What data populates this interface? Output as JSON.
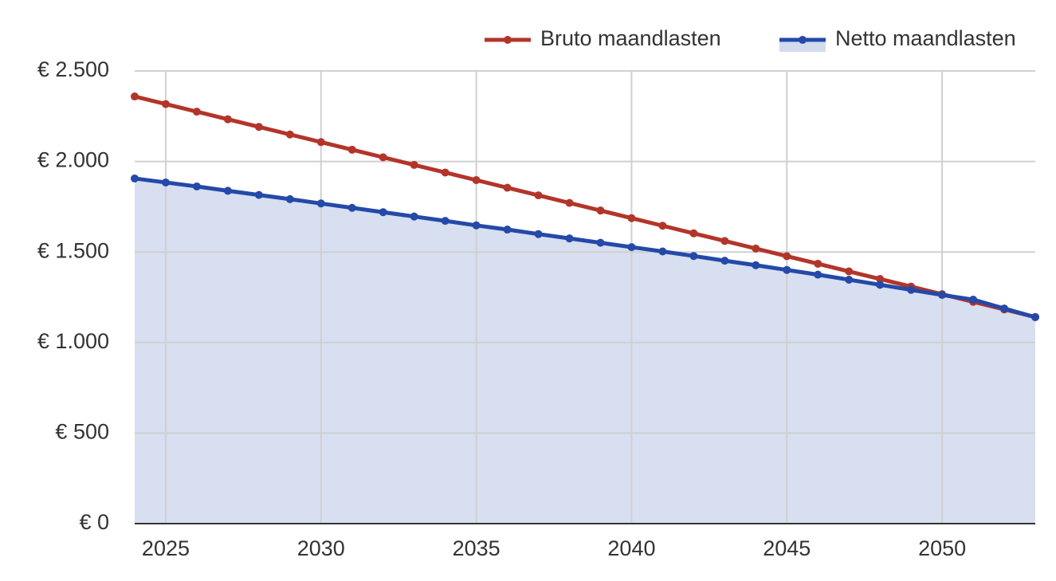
{
  "chart_data": {
    "type": "line",
    "x": [
      2024,
      2025,
      2026,
      2027,
      2028,
      2029,
      2030,
      2031,
      2032,
      2033,
      2034,
      2035,
      2036,
      2037,
      2038,
      2039,
      2040,
      2041,
      2042,
      2043,
      2044,
      2045,
      2046,
      2047,
      2048,
      2049,
      2050,
      2051,
      2052,
      2053
    ],
    "series": [
      {
        "name": "Bruto maandlasten",
        "color": "#b3352a",
        "area": false,
        "values": [
          2359,
          2317,
          2275,
          2233,
          2191,
          2149,
          2107,
          2065,
          2023,
          1981,
          1939,
          1897,
          1855,
          1813,
          1771,
          1729,
          1687,
          1645,
          1603,
          1561,
          1519,
          1477,
          1435,
          1393,
          1351,
          1309,
          1267,
          1225,
          1183,
          1141
        ]
      },
      {
        "name": "Netto maandlasten",
        "color": "#2449a8",
        "area": true,
        "area_color": "#d3dbee",
        "values": [
          1906,
          1884,
          1862,
          1838,
          1815,
          1792,
          1768,
          1744,
          1720,
          1696,
          1672,
          1647,
          1624,
          1599,
          1575,
          1551,
          1527,
          1503,
          1478,
          1452,
          1427,
          1401,
          1375,
          1347,
          1319,
          1291,
          1263,
          1237,
          1188,
          1140
        ]
      }
    ],
    "xlim": [
      2024,
      2053
    ],
    "xticks": [
      2025,
      2030,
      2035,
      2040,
      2045,
      2050
    ],
    "ylim": [
      0,
      2500
    ],
    "yticks": [
      {
        "value": 0,
        "label": "€ 0"
      },
      {
        "value": 500,
        "label": "€ 500"
      },
      {
        "value": 1000,
        "label": "€ 1.000"
      },
      {
        "value": 1500,
        "label": "€ 1.500"
      },
      {
        "value": 2000,
        "label": "€ 2.000"
      },
      {
        "value": 2500,
        "label": "€ 2.500"
      }
    ],
    "grid": true,
    "legend": "top-right"
  }
}
